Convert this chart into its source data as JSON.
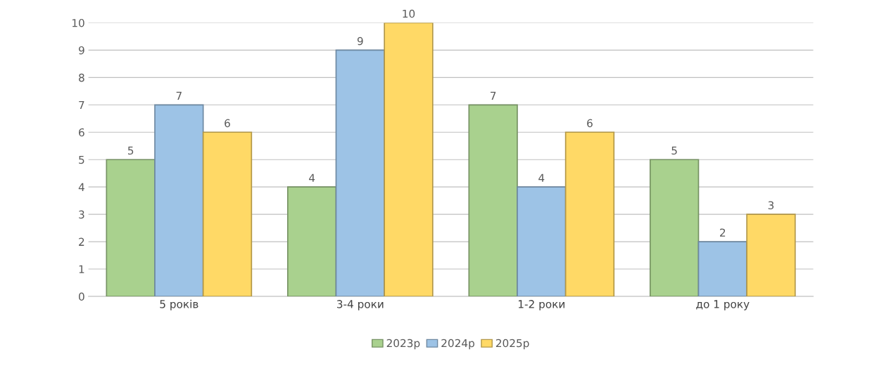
{
  "chart_data": {
    "type": "bar",
    "categories": [
      "5 років",
      "3-4 роки",
      "1-2 роки",
      "до 1 року"
    ],
    "series": [
      {
        "name": "2023р",
        "color": "#a9d18e",
        "values": [
          5,
          4,
          7,
          5
        ]
      },
      {
        "name": "2024р",
        "color": "#9dc3e6",
        "values": [
          7,
          9,
          4,
          2
        ]
      },
      {
        "name": "2025р",
        "color": "#ffd966",
        "values": [
          6,
          10,
          6,
          3
        ]
      }
    ],
    "ylim": [
      0,
      10
    ],
    "yticks": [
      0,
      1,
      2,
      3,
      4,
      5,
      6,
      7,
      8,
      9,
      10
    ],
    "grid": "y",
    "legend": "bottom",
    "data_labels": true
  }
}
